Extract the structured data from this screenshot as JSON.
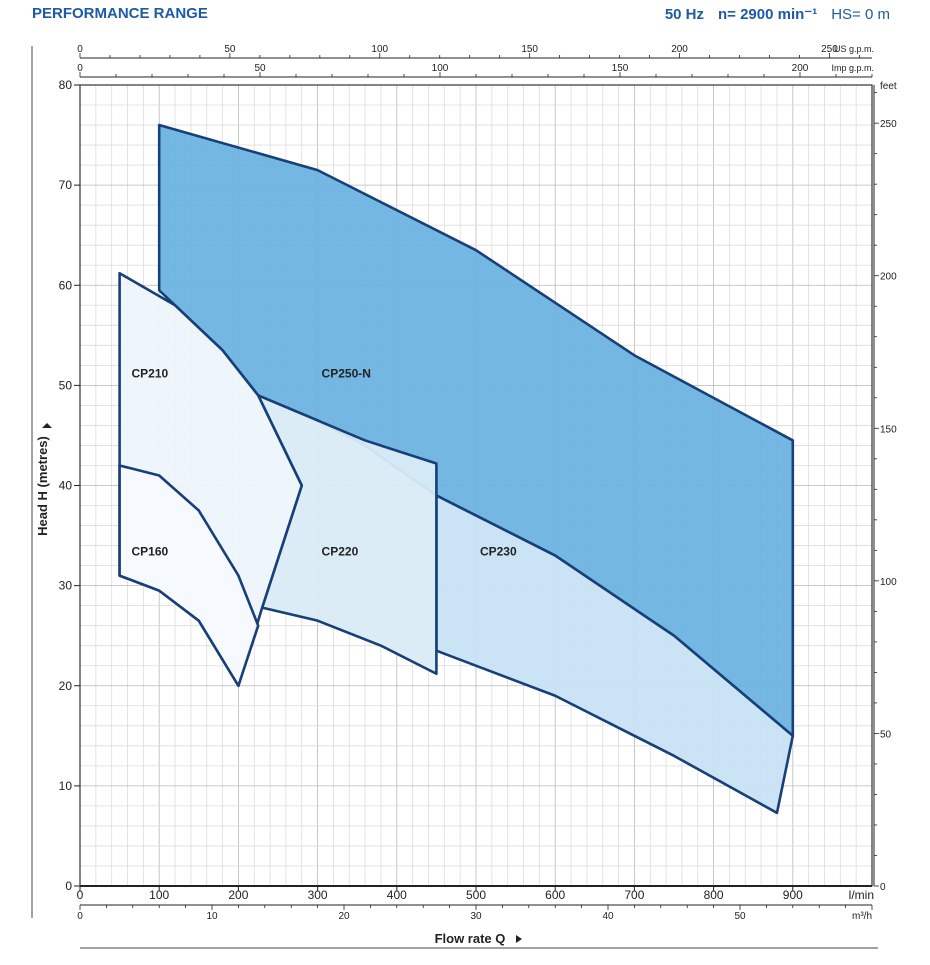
{
  "header": {
    "title": "PERFORMANCE RANGE",
    "frequency": "50 Hz",
    "speed": "n= 2900 min⁻¹",
    "suction_head": "HS= 0 m"
  },
  "chart_data": {
    "type": "area",
    "xlabel": "Flow rate Q",
    "ylabel": "Head H (metres)",
    "x_unit": "l/min",
    "xlim": [
      0,
      1000
    ],
    "ylim": [
      0,
      80
    ],
    "x_ticks": [
      0,
      100,
      200,
      300,
      400,
      500,
      600,
      700,
      800,
      900
    ],
    "y_ticks": [
      0,
      10,
      20,
      30,
      40,
      50,
      60,
      70,
      80
    ],
    "grid": true,
    "secondary_axes": {
      "m3h": {
        "unit": "m³/h",
        "ticks": [
          0,
          10,
          20,
          30,
          40,
          50
        ]
      },
      "us_gpm": {
        "unit": "US g.p.m.",
        "ticks": [
          0,
          50,
          100,
          150,
          200,
          250
        ]
      },
      "imp_gpm": {
        "unit": "Imp g.p.m.",
        "ticks": [
          0,
          50,
          100,
          150,
          200
        ]
      },
      "feet": {
        "unit": "feet",
        "ticks": [
          0,
          50,
          100,
          150,
          200,
          250
        ]
      }
    },
    "series": [
      {
        "name": "CP250-N",
        "color": "#6cb3e0",
        "points": [
          [
            100,
            76
          ],
          [
            300,
            71.5
          ],
          [
            500,
            63.5
          ],
          [
            700,
            53
          ],
          [
            900,
            44.5
          ],
          [
            900,
            15
          ],
          [
            750,
            25
          ],
          [
            600,
            33
          ],
          [
            450,
            39
          ],
          [
            360,
            44
          ],
          [
            300,
            46.5
          ],
          [
            225,
            49
          ],
          [
            180,
            53.5
          ],
          [
            100,
            59.5
          ]
        ]
      },
      {
        "name": "CP230",
        "color": "#c7e2f4",
        "points": [
          [
            450,
            39
          ],
          [
            600,
            33
          ],
          [
            750,
            25
          ],
          [
            900,
            15
          ],
          [
            880,
            7.3
          ],
          [
            750,
            13
          ],
          [
            600,
            19
          ],
          [
            450,
            23.5
          ],
          [
            450,
            39
          ]
        ]
      },
      {
        "name": "CP220",
        "color": "#d9ebf7",
        "points": [
          [
            225,
            49
          ],
          [
            300,
            46.5
          ],
          [
            360,
            44.5
          ],
          [
            450,
            42.2
          ],
          [
            450,
            21.2
          ],
          [
            380,
            24
          ],
          [
            300,
            26.5
          ],
          [
            230,
            27.8
          ],
          [
            280,
            40
          ]
        ]
      },
      {
        "name": "CP210",
        "color": "#edf4fb",
        "points": [
          [
            50,
            61.2
          ],
          [
            120,
            58
          ],
          [
            180,
            53.5
          ],
          [
            225,
            49
          ],
          [
            280,
            40
          ],
          [
            230,
            27.8
          ],
          [
            200,
            20
          ],
          [
            150,
            26.5
          ],
          [
            100,
            29.5
          ],
          [
            50,
            31
          ]
        ]
      },
      {
        "name": "CP160",
        "color": "#f6f9fd",
        "points": [
          [
            50,
            42
          ],
          [
            100,
            41
          ],
          [
            150,
            37.5
          ],
          [
            200,
            31
          ],
          [
            225,
            26
          ],
          [
            200,
            20
          ],
          [
            150,
            26.5
          ],
          [
            100,
            29.5
          ],
          [
            50,
            31
          ]
        ]
      }
    ],
    "labels": [
      {
        "text": "CP210",
        "x": 65,
        "y": 50.8
      },
      {
        "text": "CP250-N",
        "x": 305,
        "y": 50.8
      },
      {
        "text": "CP160",
        "x": 65,
        "y": 33
      },
      {
        "text": "CP220",
        "x": 305,
        "y": 33
      },
      {
        "text": "CP230",
        "x": 505,
        "y": 33
      }
    ]
  }
}
